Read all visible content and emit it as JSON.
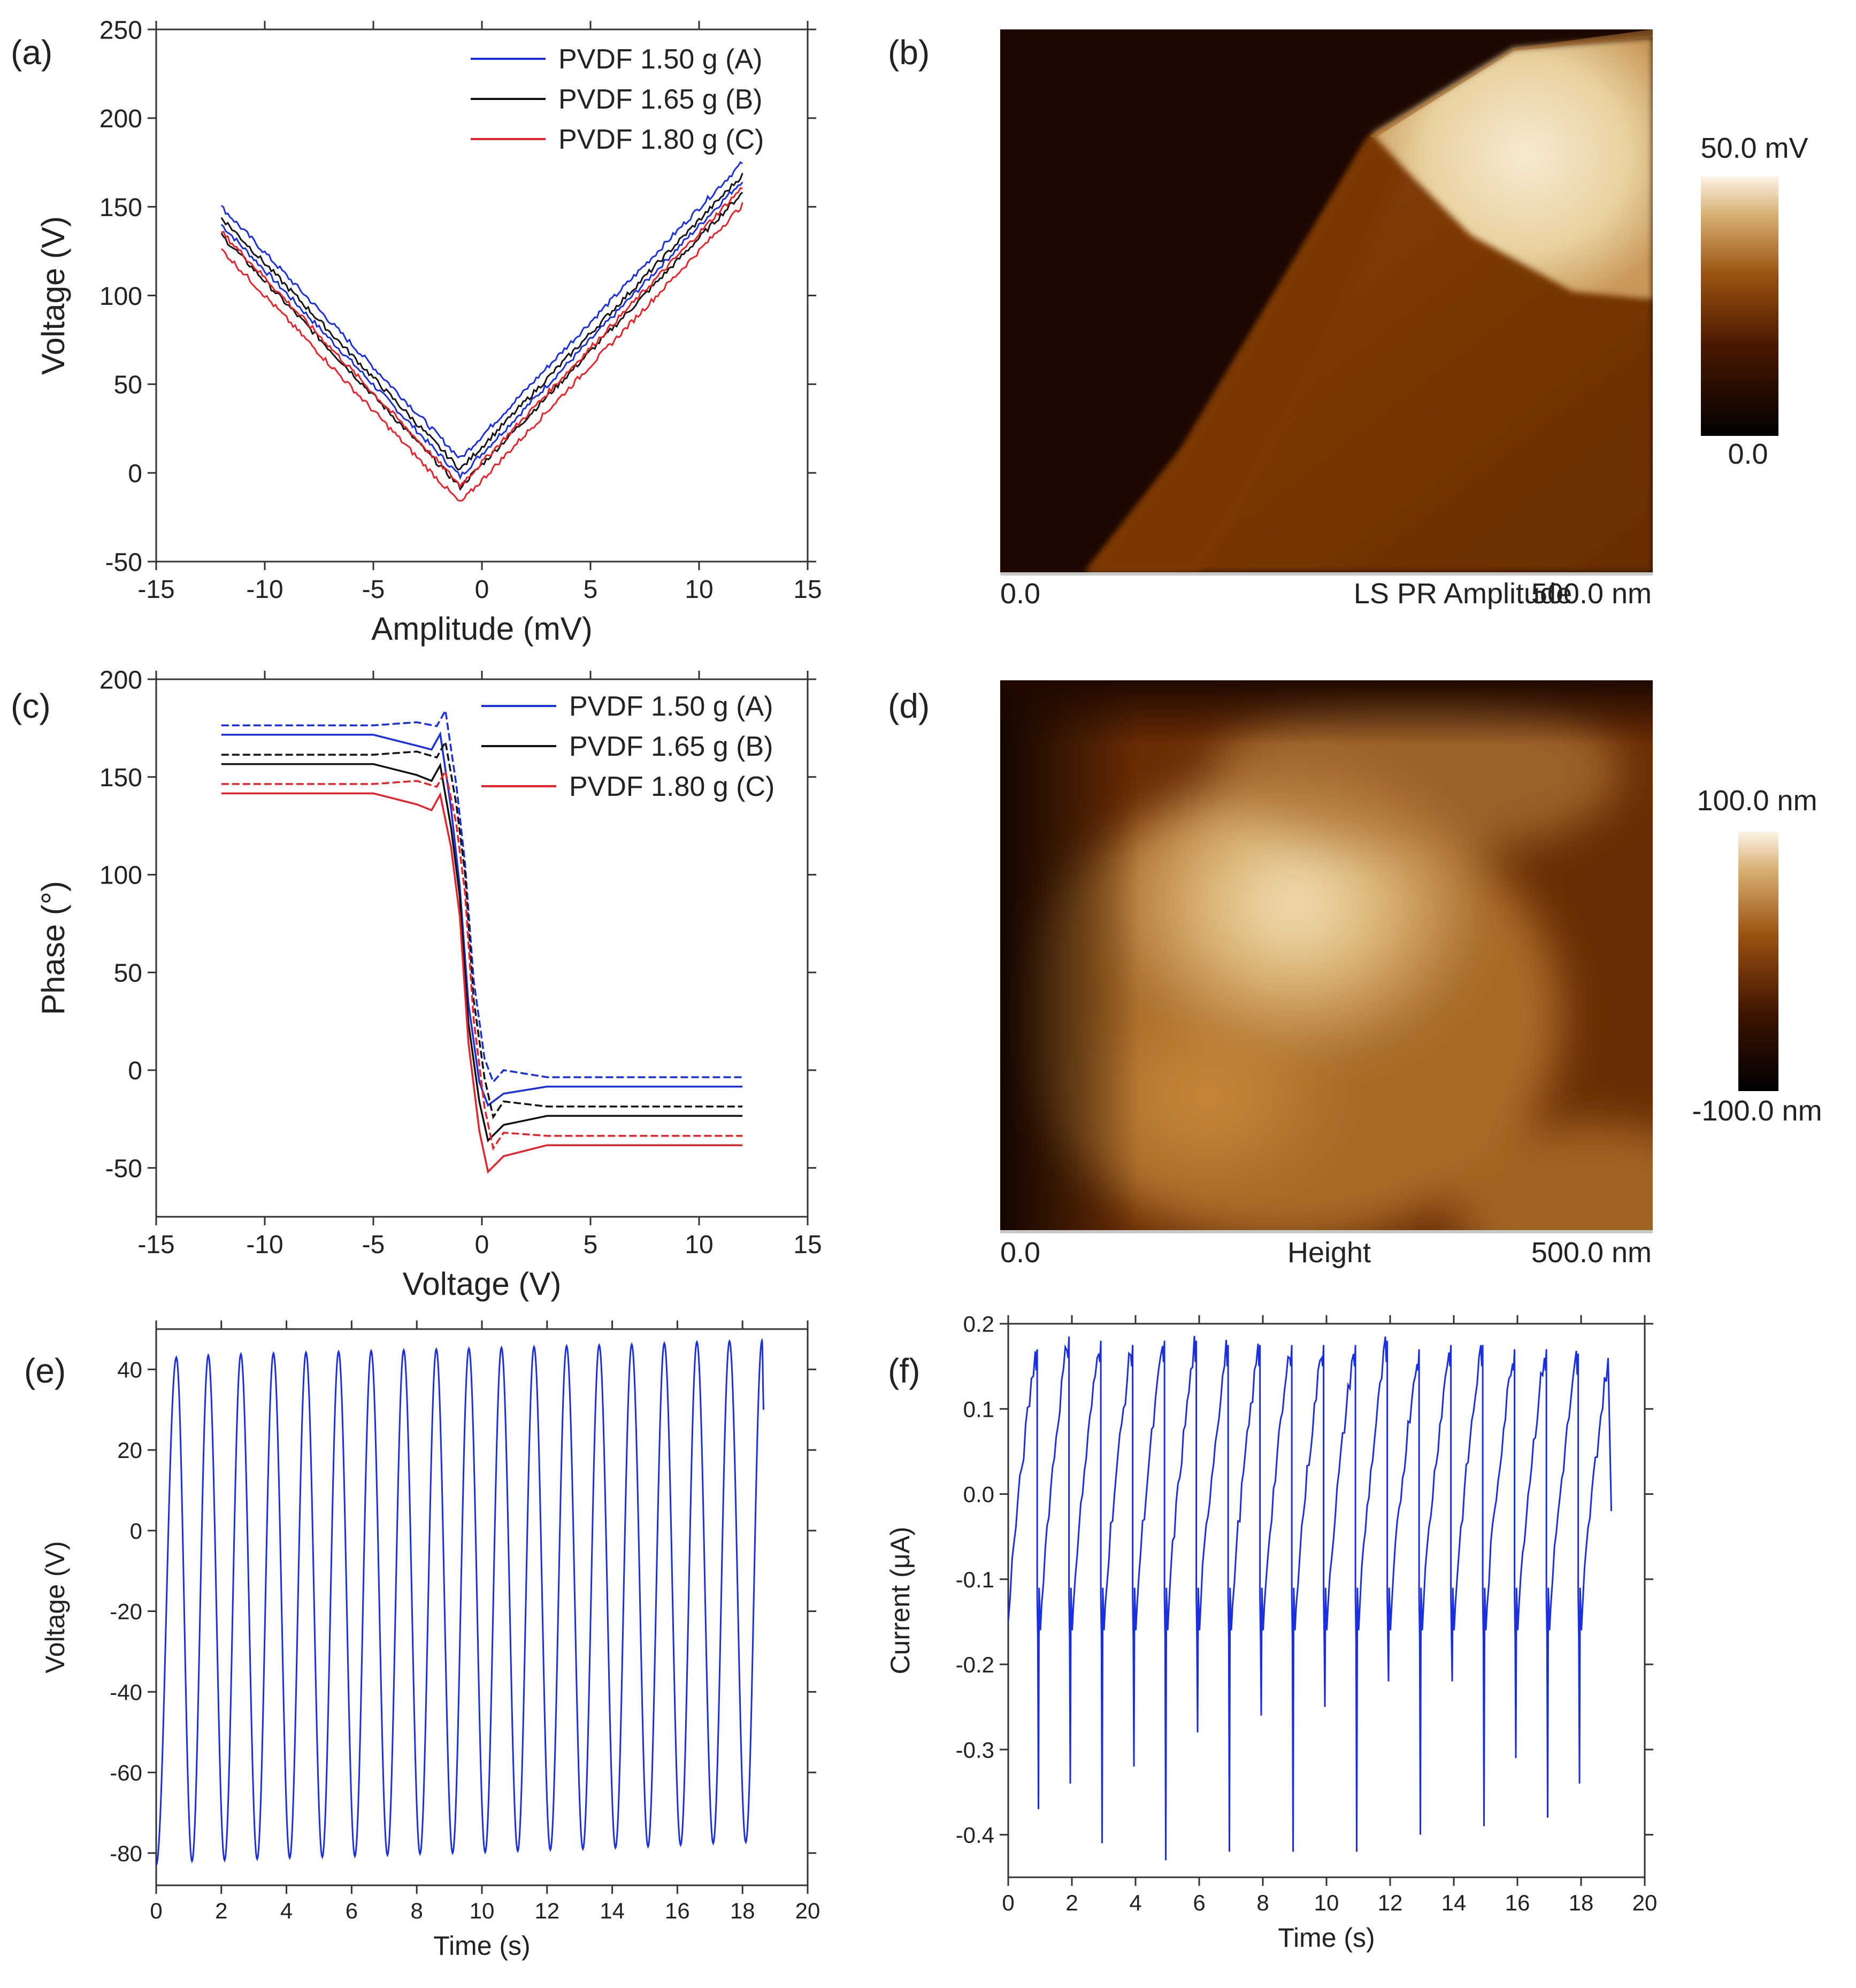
{
  "panels": {
    "a": "(a)",
    "b": "(b)",
    "c": "(c)",
    "d": "(d)",
    "e": "(e)",
    "f": "(f)"
  },
  "colors": {
    "blue": "#1a2fe0",
    "black": "#111111",
    "red": "#e8222a",
    "afm_dark": "#140600",
    "afm_mid": "#8a4108",
    "afm_light": "#f2e6c8"
  },
  "chart_data": [
    {
      "id": "a",
      "type": "line",
      "title": "",
      "xlabel": "Amplitude (mV)",
      "ylabel": "Voltage (V)",
      "xlim": [
        -15,
        15
      ],
      "ylim": [
        -50,
        250
      ],
      "xticks": [
        -15,
        -10,
        -5,
        0,
        5,
        10,
        15
      ],
      "yticks": [
        -50,
        0,
        50,
        100,
        150,
        200,
        250
      ],
      "legend": "top-right",
      "series": [
        {
          "name": "PVDF 1.50 g (A)",
          "color": "#1a2fe0",
          "x": [
            -12,
            -1,
            12
          ],
          "y": [
            145,
            3,
            170
          ]
        },
        {
          "name": "PVDF 1.65 g (B)",
          "color": "#111111",
          "x": [
            -12,
            -1,
            12
          ],
          "y": [
            139,
            -3,
            163
          ]
        },
        {
          "name": "PVDF 1.80 g (C)",
          "color": "#e8222a",
          "x": [
            -12,
            -1,
            12
          ],
          "y": [
            131,
            -12,
            156
          ]
        }
      ]
    },
    {
      "id": "b",
      "type": "heatmap",
      "caption": "LS PR Amplitude",
      "x_start": "0.0",
      "x_end": "500.0 nm",
      "colorbar_max": "50.0 mV",
      "colorbar_min": "0.0"
    },
    {
      "id": "c",
      "type": "line",
      "title": "",
      "xlabel": "Voltage (V)",
      "ylabel": "Phase (°)",
      "xlim": [
        -15,
        15
      ],
      "ylim": [
        -75,
        200
      ],
      "xticks": [
        -15,
        -10,
        -5,
        0,
        5,
        10,
        15
      ],
      "yticks": [
        -50,
        0,
        50,
        100,
        150,
        200
      ],
      "legend": "top-right",
      "series": [
        {
          "name": "PVDF 1.50 g (A)",
          "color": "#1a2fe0",
          "x": [
            -12,
            -5,
            -3,
            -2.2,
            -1.8,
            -1.3,
            -0.9,
            -0.5,
            0,
            0.4,
            1,
            3,
            12
          ],
          "y": [
            174,
            174,
            172,
            170,
            178,
            140,
            100,
            40,
            0,
            -12,
            -6,
            -6,
            -6
          ]
        },
        {
          "name": "PVDF 1.65 g (B)",
          "color": "#111111",
          "x": [
            -12,
            -5,
            -3,
            -2.2,
            -1.8,
            -1.3,
            -0.9,
            -0.5,
            0,
            0.4,
            1,
            3,
            12
          ],
          "y": [
            159,
            159,
            157,
            154,
            162,
            130,
            95,
            30,
            -10,
            -30,
            -22,
            -21,
            -21
          ]
        },
        {
          "name": "PVDF 1.80 g (C)",
          "color": "#e8222a",
          "x": [
            -12,
            -5,
            -3,
            -2.2,
            -1.8,
            -1.3,
            -0.9,
            -0.5,
            0,
            0.4,
            1,
            3,
            12
          ],
          "y": [
            144,
            144,
            142,
            139,
            147,
            120,
            85,
            20,
            -25,
            -46,
            -38,
            -36,
            -36
          ]
        }
      ]
    },
    {
      "id": "d",
      "type": "heatmap",
      "caption": "Height",
      "x_start": "0.0",
      "x_end": "500.0 nm",
      "colorbar_max": "100.0 nm",
      "colorbar_min": "-100.0 nm"
    },
    {
      "id": "e",
      "type": "line",
      "title": "",
      "xlabel": "Time (s)",
      "ylabel": "Voltage (V)",
      "xlim": [
        0,
        20
      ],
      "ylim": [
        -88,
        50
      ],
      "xticks": [
        0,
        2,
        4,
        6,
        8,
        10,
        12,
        14,
        16,
        18,
        20
      ],
      "yticks": [
        -80,
        -60,
        -40,
        -20,
        0,
        20,
        40
      ],
      "series": [
        {
          "name": "Voltage",
          "color": "#1a2fe0",
          "period_s": 1.0,
          "t_start": 0,
          "t_end": 18.65,
          "peaks_t": [
            0.62,
            1.6,
            2.6,
            3.6,
            4.6,
            5.6,
            6.6,
            7.6,
            8.6,
            9.6,
            10.6,
            11.6,
            12.6,
            13.6,
            14.6,
            15.6,
            16.6,
            17.6,
            18.6
          ],
          "peaks_v": [
            43,
            43.5,
            43.8,
            44,
            44.2,
            44.4,
            44.6,
            44.8,
            45,
            45.2,
            45.4,
            45.6,
            45.8,
            46,
            46.2,
            46.5,
            46.8,
            47,
            47.2
          ],
          "troughs_t": [
            1.1,
            2.1,
            3.1,
            4.1,
            5.1,
            6.1,
            7.1,
            8.1,
            9.1,
            10.1,
            11.1,
            12.1,
            13.1,
            14.1,
            15.1,
            16.1,
            17.1,
            18.1
          ],
          "troughs_v": [
            -82,
            -81.8,
            -81.5,
            -81.2,
            -81,
            -80.8,
            -80.5,
            -80.2,
            -80,
            -79.8,
            -79.5,
            -79.2,
            -79,
            -78.7,
            -78.4,
            -78,
            -77.6,
            -77.3
          ],
          "start_v": -83,
          "end_v": 30
        }
      ]
    },
    {
      "id": "f",
      "type": "line",
      "title": "",
      "xlabel": "Time (s)",
      "ylabel": "Current (μA)",
      "xlim": [
        0,
        20
      ],
      "ylim": [
        -0.45,
        0.2
      ],
      "xticks": [
        0,
        2,
        4,
        6,
        8,
        10,
        12,
        14,
        16,
        18,
        20
      ],
      "yticks": [
        -0.4,
        -0.3,
        -0.2,
        -0.1,
        0.0,
        0.1,
        0.2
      ],
      "ytick_labels": [
        "-0.4",
        "-0.3",
        "-0.2",
        "-0.1",
        "0.0",
        "0.1",
        "0.2"
      ],
      "series": [
        {
          "name": "Current",
          "color": "#1a2fe0",
          "t_start": 0,
          "t_end": 18.95,
          "peaks_t": [
            0.85,
            1.85,
            2.85,
            3.85,
            4.85,
            5.85,
            6.85,
            7.85,
            8.85,
            9.85,
            10.85,
            11.85,
            12.85,
            13.85,
            14.85,
            15.85,
            16.85,
            17.85,
            18.85
          ],
          "peaks_v": [
            0.165,
            0.18,
            0.175,
            0.17,
            0.175,
            0.175,
            0.17,
            0.17,
            0.17,
            0.17,
            0.17,
            0.175,
            0.165,
            0.17,
            0.17,
            0.165,
            0.165,
            0.16,
            0.16
          ],
          "spike_t": [
            0.95,
            1.95,
            2.95,
            3.95,
            4.95,
            5.95,
            6.95,
            7.95,
            8.95,
            9.95,
            10.95,
            11.95,
            12.95,
            13.95,
            14.95,
            15.95,
            16.95,
            17.95
          ],
          "spike_v": [
            -0.37,
            -0.34,
            -0.41,
            -0.32,
            -0.43,
            -0.28,
            -0.42,
            -0.26,
            -0.42,
            -0.25,
            -0.42,
            -0.22,
            -0.4,
            -0.22,
            -0.39,
            -0.31,
            -0.38,
            -0.34
          ],
          "start_v": -0.15,
          "end_v": -0.02
        }
      ]
    }
  ]
}
